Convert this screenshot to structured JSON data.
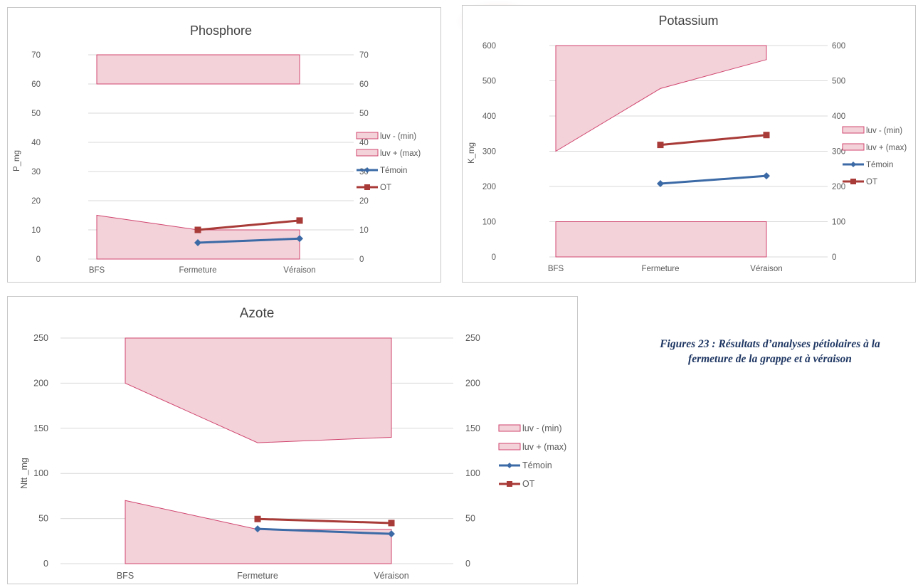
{
  "colors": {
    "band_fill": "#f3d2da",
    "band_stroke": "#d0456f",
    "temoin": "#3b6aa6",
    "ot": "#a83a37",
    "grid": "#d9d9d9",
    "text": "#595959",
    "caption": "#1f3763"
  },
  "caption": {
    "line1": "Figures 23 : Résultats d’analyses pétiolaires à la",
    "line2": "fermeture de la grappe et à véraison"
  },
  "chart_data": [
    {
      "type": "area",
      "title": "Phosphore",
      "ylabel": "P_mg",
      "categories": [
        "BFS",
        "Fermeture",
        "Véraison"
      ],
      "ylim": [
        0,
        70
      ],
      "ticks": [
        0,
        10,
        20,
        30,
        40,
        50,
        60,
        70
      ],
      "secondary_axis": true,
      "grid": true,
      "legend_position": "right",
      "bands": [
        {
          "name": "luv - (min)",
          "lower": [
            0,
            0,
            0
          ],
          "upper": [
            15,
            10,
            10
          ]
        },
        {
          "name": "luv + (max)",
          "lower": [
            60,
            60,
            60
          ],
          "upper": [
            70,
            70,
            70
          ]
        }
      ],
      "series": [
        {
          "name": "Témoin",
          "values": [
            null,
            5.6,
            7.0
          ],
          "marker": "diamond"
        },
        {
          "name": "OT",
          "values": [
            null,
            10.0,
            13.2
          ],
          "marker": "square"
        }
      ]
    },
    {
      "type": "area",
      "title": "Potassium",
      "ylabel": "K_mg",
      "categories": [
        "BFS",
        "Fermeture",
        "Véraison"
      ],
      "ylim": [
        0,
        600
      ],
      "ticks": [
        0,
        100,
        200,
        300,
        400,
        500,
        600
      ],
      "secondary_axis": true,
      "grid": true,
      "legend_position": "right",
      "bands": [
        {
          "name": "luv - (min)",
          "lower": [
            0,
            0,
            0
          ],
          "upper": [
            100,
            100,
            100
          ]
        },
        {
          "name": "luv + (max)",
          "lower": [
            300,
            478,
            560
          ],
          "upper": [
            600,
            600,
            600
          ]
        }
      ],
      "series": [
        {
          "name": "Témoin",
          "values": [
            null,
            208,
            230
          ],
          "marker": "diamond"
        },
        {
          "name": "OT",
          "values": [
            null,
            318,
            346
          ],
          "marker": "square"
        }
      ]
    },
    {
      "type": "area",
      "title": "Azote",
      "ylabel": "Ntt _mg",
      "categories": [
        "BFS",
        "Fermeture",
        "Véraison"
      ],
      "ylim": [
        0,
        250
      ],
      "ticks": [
        0,
        50,
        100,
        150,
        200,
        250
      ],
      "secondary_axis": true,
      "grid": true,
      "legend_position": "right",
      "bands": [
        {
          "name": "luv - (min)",
          "lower": [
            0,
            0,
            0
          ],
          "upper": [
            70,
            38,
            38
          ]
        },
        {
          "name": "luv + (max)",
          "lower": [
            200,
            134,
            140
          ],
          "upper": [
            250,
            250,
            250
          ]
        }
      ],
      "series": [
        {
          "name": "Témoin",
          "values": [
            null,
            38.5,
            33.0
          ],
          "marker": "diamond"
        },
        {
          "name": "OT",
          "values": [
            null,
            49.5,
            45.0
          ],
          "marker": "square"
        }
      ]
    }
  ]
}
